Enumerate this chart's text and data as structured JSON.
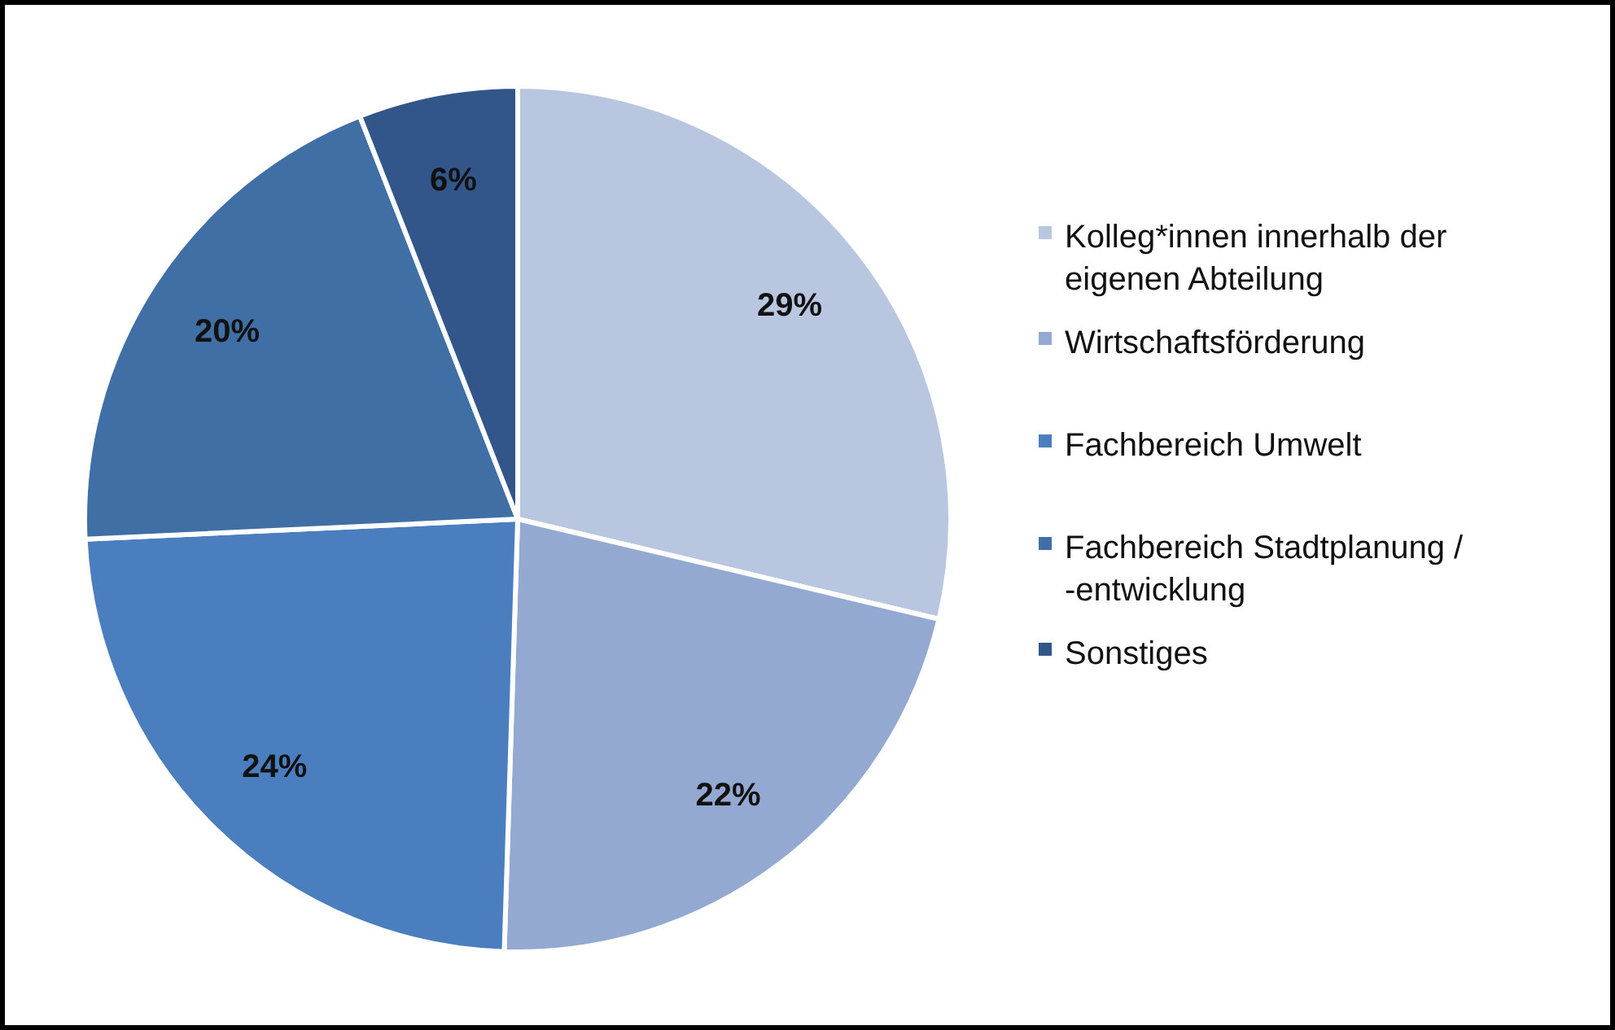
{
  "chart_data": {
    "type": "pie",
    "categories": [
      "Kolleg*innen innerhalb der eigenen Abteilung",
      "Wirtschaftsförderung",
      "Fachbereich Umwelt",
      "Fachbereich Stadtplanung / -entwicklung",
      "Sonstiges"
    ],
    "values": [
      29,
      22,
      24,
      20,
      6
    ],
    "colors": [
      "#b9c6e0",
      "#94a9d1",
      "#4a7ebf",
      "#3f6fa5",
      "#32568a"
    ],
    "value_labels": [
      "29%",
      "22%",
      "24%",
      "20%",
      "6%"
    ],
    "legend": "right"
  }
}
